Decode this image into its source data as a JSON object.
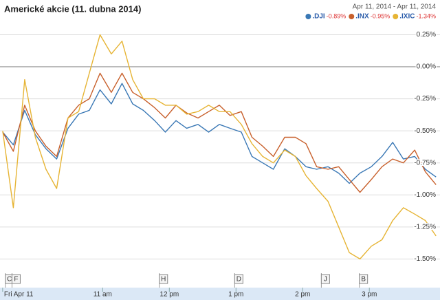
{
  "chart_data": {
    "type": "line",
    "title": "Americké akcie (11. dubna 2014)",
    "subtitle": "Apr 11, 2014 - Apr 11, 2014",
    "x": [
      9.5,
      9.66,
      9.83,
      9.99,
      10.15,
      10.31,
      10.48,
      10.64,
      10.8,
      10.96,
      11.13,
      11.29,
      11.45,
      11.61,
      11.78,
      11.94,
      12.1,
      12.26,
      12.43,
      12.59,
      12.75,
      12.91,
      13.08,
      13.24,
      13.4,
      13.56,
      13.73,
      13.89,
      14.05,
      14.21,
      14.38,
      14.54,
      14.7,
      14.86,
      15.03,
      15.19,
      15.35,
      15.51,
      15.68,
      15.84,
      16.0
    ],
    "series": [
      {
        "name": ".DJI",
        "change_label": "-0.89%",
        "color": "#3a78b5",
        "values": [
          -0.51,
          -0.61,
          -0.34,
          -0.53,
          -0.64,
          -0.72,
          -0.48,
          -0.37,
          -0.34,
          -0.18,
          -0.29,
          -0.13,
          -0.29,
          -0.34,
          -0.42,
          -0.51,
          -0.42,
          -0.48,
          -0.45,
          -0.51,
          -0.45,
          -0.48,
          -0.51,
          -0.7,
          -0.75,
          -0.8,
          -0.64,
          -0.7,
          -0.78,
          -0.8,
          -0.78,
          -0.83,
          -0.91,
          -0.83,
          -0.78,
          -0.7,
          -0.59,
          -0.72,
          -0.7,
          -0.8,
          -0.86
        ]
      },
      {
        "name": ".INX",
        "change_label": "-0.95%",
        "color": "#c8602c",
        "values": [
          -0.51,
          -0.66,
          -0.3,
          -0.5,
          -0.62,
          -0.7,
          -0.4,
          -0.3,
          -0.25,
          -0.05,
          -0.2,
          -0.05,
          -0.2,
          -0.25,
          -0.32,
          -0.4,
          -0.3,
          -0.36,
          -0.4,
          -0.35,
          -0.3,
          -0.38,
          -0.35,
          -0.55,
          -0.62,
          -0.7,
          -0.55,
          -0.55,
          -0.6,
          -0.78,
          -0.8,
          -0.78,
          -0.88,
          -0.98,
          -0.88,
          -0.78,
          -0.72,
          -0.75,
          -0.65,
          -0.82,
          -0.92
        ]
      },
      {
        "name": ".IXIC",
        "change_label": "-1.34%",
        "color": "#e6b434",
        "values": [
          -0.5,
          -1.1,
          -0.1,
          -0.55,
          -0.8,
          -0.95,
          -0.4,
          -0.35,
          -0.05,
          0.25,
          0.1,
          0.2,
          -0.1,
          -0.25,
          -0.25,
          -0.3,
          -0.3,
          -0.37,
          -0.35,
          -0.3,
          -0.35,
          -0.35,
          -0.45,
          -0.6,
          -0.7,
          -0.75,
          -0.65,
          -0.7,
          -0.85,
          -0.95,
          -1.05,
          -1.25,
          -1.45,
          -1.5,
          -1.4,
          -1.35,
          -1.2,
          -1.1,
          -1.15,
          -1.2,
          -1.32
        ]
      }
    ],
    "xlim": [
      9.46,
      16.06
    ],
    "xticks": [
      {
        "value": 9.5,
        "label": "Fri Apr 11"
      },
      {
        "value": 11,
        "label": "11 am"
      },
      {
        "value": 12,
        "label": "12 pm"
      },
      {
        "value": 13,
        "label": "1 pm"
      },
      {
        "value": 14,
        "label": "2 pm"
      },
      {
        "value": 15,
        "label": "3 pm"
      }
    ],
    "ylim": [
      -1.6,
      0.36
    ],
    "yticks": [
      {
        "value": 0.25,
        "label": "0.25%"
      },
      {
        "value": 0,
        "label": "0.00%"
      },
      {
        "value": -0.25,
        "label": "-0.25%"
      },
      {
        "value": -0.5,
        "label": "-0.50%"
      },
      {
        "value": -0.75,
        "label": "-0.75%"
      },
      {
        "value": -1,
        "label": "-1.00%"
      },
      {
        "value": -1.25,
        "label": "-1.25%"
      },
      {
        "value": -1.5,
        "label": "-1.50%"
      }
    ],
    "grid": true,
    "annotations": [
      {
        "label": "C",
        "x": 9.54
      },
      {
        "label": "F",
        "x": 9.64
      },
      {
        "label": "H",
        "x": 11.85
      },
      {
        "label": "D",
        "x": 12.98
      },
      {
        "label": "J",
        "x": 14.28
      },
      {
        "label": "B",
        "x": 14.85
      }
    ]
  }
}
